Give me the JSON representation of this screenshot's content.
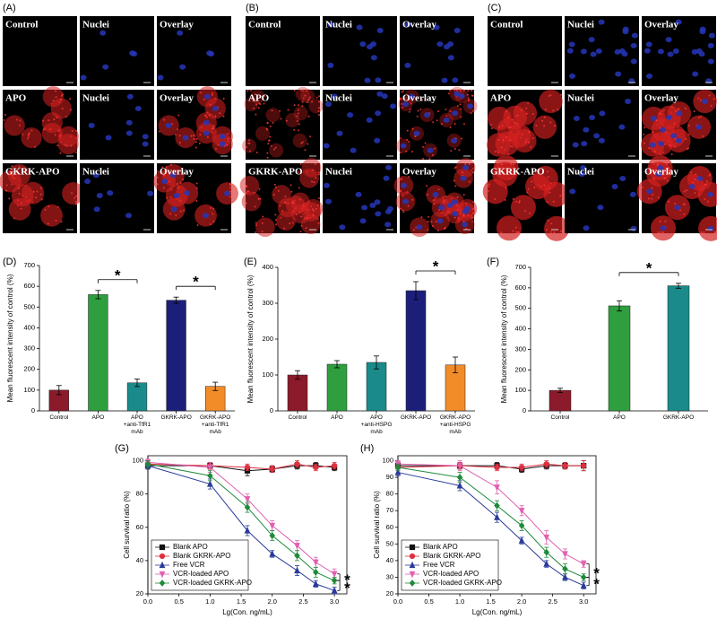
{
  "image_panels": [
    {
      "label": "(A)",
      "rows": [
        [
          "Control",
          "Nuclei",
          "Overlay"
        ],
        [
          "APO",
          "Nuclei",
          "Overlay"
        ],
        [
          "GKRK-APO",
          "Nuclei",
          "Overlay"
        ]
      ]
    },
    {
      "label": "(B)",
      "rows": [
        [
          "Control",
          "Nuclei",
          "Overlay"
        ],
        [
          "APO",
          "Nuclei",
          "Overlay"
        ],
        [
          "GKRK-APO",
          "Nuclei",
          "Overlay"
        ]
      ]
    },
    {
      "label": "(C)",
      "rows": [
        [
          "Control",
          "Nuclei",
          "Overlay"
        ],
        [
          "APO",
          "Nuclei",
          "Overlay"
        ],
        [
          "GKRK-APO",
          "Nuclei",
          "Overlay"
        ]
      ]
    }
  ],
  "chart_data": [
    {
      "type": "bar",
      "panel_label": "(D)",
      "y_label": "Mean fluorescent intensity of control (%)",
      "categories": [
        "Control",
        "APO",
        "APO\n+anti-TfR1 mAb",
        "GKRK-APO",
        "GKRK-APO\n+anti-TfR1 mAb"
      ],
      "values": [
        100,
        560,
        135,
        533,
        118
      ],
      "errors": [
        22,
        20,
        18,
        15,
        20
      ],
      "colors": [
        "#8b1a2b",
        "#2e9e3e",
        "#1a8a8a",
        "#1c1f7a",
        "#f28c28"
      ],
      "ylim": [
        0,
        700
      ],
      "yticks": [
        0,
        100,
        200,
        300,
        400,
        500,
        600,
        700
      ],
      "significance": [
        {
          "from": 1,
          "to": 2,
          "label": "*"
        },
        {
          "from": 3,
          "to": 4,
          "label": "*"
        }
      ]
    },
    {
      "type": "bar",
      "panel_label": "(E)",
      "y_label": "Mean fluorescent intensity of control (%)",
      "categories": [
        "Control",
        "APO",
        "APO\n+anti-HSPG mAb",
        "GKRK-APO",
        "GKRK-APO\n+anti-HSPG mAb"
      ],
      "values": [
        100,
        130,
        135,
        335,
        128
      ],
      "errors": [
        12,
        10,
        18,
        25,
        22
      ],
      "colors": [
        "#8b1a2b",
        "#2e9e3e",
        "#1a8a8a",
        "#1c1f7a",
        "#f28c28"
      ],
      "ylim": [
        0,
        400
      ],
      "yticks": [
        0,
        100,
        200,
        300,
        400
      ],
      "significance": [
        {
          "from": 3,
          "to": 4,
          "label": "*"
        }
      ]
    },
    {
      "type": "bar",
      "panel_label": "(F)",
      "y_label": "Mean fluorescent intensity of control (%)",
      "categories": [
        "Control",
        "APO",
        "GKRK-APO"
      ],
      "values": [
        100,
        512,
        610
      ],
      "errors": [
        10,
        25,
        12
      ],
      "colors": [
        "#8b1a2b",
        "#2e9e3e",
        "#1a8a8a"
      ],
      "ylim": [
        0,
        700
      ],
      "yticks": [
        0,
        100,
        200,
        300,
        400,
        500,
        600,
        700
      ],
      "significance": [
        {
          "from": 1,
          "to": 2,
          "label": "*"
        }
      ]
    },
    {
      "type": "line",
      "panel_label": "(G)",
      "x_label": "Lg(Con. ng/mL)",
      "y_label": "Cell survival ratio (%)",
      "x": [
        0,
        1.0,
        1.6,
        2.0,
        2.4,
        2.7,
        3.0
      ],
      "series": [
        {
          "name": "Blank APO",
          "color": "#111111",
          "marker": "square",
          "values": [
            97,
            97,
            94,
            95,
            97,
            97,
            96
          ],
          "errors": [
            2,
            2,
            3,
            2,
            2,
            2,
            2
          ]
        },
        {
          "name": "Blank GKRK-APO",
          "color": "#e03040",
          "marker": "circle",
          "values": [
            98,
            97,
            96,
            95,
            98,
            96,
            97
          ],
          "errors": [
            2,
            2,
            2,
            2,
            2,
            2,
            2
          ]
        },
        {
          "name": "Free VCR",
          "color": "#2a3a9a",
          "marker": "triangle-up",
          "values": [
            97,
            86,
            58,
            44,
            34,
            26,
            22
          ],
          "errors": [
            2,
            3,
            3,
            2,
            3,
            2,
            2
          ]
        },
        {
          "name": "VCR-loaded APO",
          "color": "#e060b0",
          "marker": "triangle-down",
          "values": [
            99,
            96,
            77,
            61,
            49,
            39,
            32
          ],
          "errors": [
            2,
            3,
            3,
            3,
            3,
            3,
            3
          ]
        },
        {
          "name": "VCR-loaded GKRK-APO",
          "color": "#1e8a3a",
          "marker": "diamond",
          "values": [
            98,
            91,
            72,
            55,
            43,
            33,
            28
          ],
          "errors": [
            2,
            3,
            3,
            3,
            3,
            3,
            2
          ]
        }
      ],
      "xlim": [
        0,
        3.2
      ],
      "xticks": [
        {
          "value": 0,
          "label": "0.0"
        },
        {
          "value": 0.5,
          "label": "0.5"
        },
        {
          "value": 1,
          "label": "1.0"
        },
        {
          "value": 1.5,
          "label": "1.5"
        },
        {
          "value": 2,
          "label": "2.0"
        },
        {
          "value": 2.5,
          "label": "2.5"
        },
        {
          "value": 3,
          "label": "3.0"
        }
      ],
      "ylim": [
        20,
        103
      ],
      "yticks": [
        20,
        40,
        60,
        80,
        100
      ],
      "legend": "lower left",
      "significance": [
        {
          "between": [
            3,
            4
          ],
          "label": "*"
        },
        {
          "between": [
            4,
            2
          ],
          "label": "*"
        }
      ]
    },
    {
      "type": "line",
      "panel_label": "(H)",
      "x_label": "Lg(Con. ng/mL)",
      "y_label": "Cell survival ratio (%)",
      "x": [
        0,
        1.0,
        1.6,
        2.0,
        2.4,
        2.7,
        3.0
      ],
      "series": [
        {
          "name": "Blank APO",
          "color": "#111111",
          "marker": "square",
          "values": [
            97,
            97,
            97,
            95,
            97,
            97,
            97
          ],
          "errors": [
            2,
            2,
            2,
            2,
            2,
            2,
            3
          ]
        },
        {
          "name": "Blank GKRK-APO",
          "color": "#e03040",
          "marker": "circle",
          "values": [
            96,
            97,
            96,
            96,
            98,
            97,
            97
          ],
          "errors": [
            2,
            2,
            2,
            2,
            2,
            2,
            3
          ]
        },
        {
          "name": "Free VCR",
          "color": "#2a3a9a",
          "marker": "triangle-up",
          "values": [
            93,
            85,
            66,
            52,
            38,
            30,
            25
          ],
          "errors": [
            2,
            3,
            3,
            2,
            2,
            2,
            2
          ]
        },
        {
          "name": "VCR-loaded APO",
          "color": "#e060b0",
          "marker": "triangle-down",
          "values": [
            98,
            97,
            84,
            70,
            54,
            44,
            38
          ],
          "errors": [
            2,
            3,
            4,
            3,
            4,
            3,
            2
          ]
        },
        {
          "name": "VCR-loaded GKRK-APO",
          "color": "#1e8a3a",
          "marker": "diamond",
          "values": [
            96,
            90,
            73,
            61,
            45,
            35,
            30
          ],
          "errors": [
            2,
            3,
            3,
            3,
            3,
            3,
            2
          ]
        }
      ],
      "xlim": [
        0,
        3.2
      ],
      "xticks": [
        {
          "value": 0,
          "label": "0.0"
        },
        {
          "value": 0.5,
          "label": "0.5"
        },
        {
          "value": 1,
          "label": "1.0"
        },
        {
          "value": 1.5,
          "label": "1.5"
        },
        {
          "value": 2,
          "label": "2.0"
        },
        {
          "value": 2.5,
          "label": "2.5"
        },
        {
          "value": 3,
          "label": "3.0"
        }
      ],
      "ylim": [
        20,
        103
      ],
      "yticks": [
        20,
        30,
        40,
        50,
        60,
        70,
        80,
        90,
        100
      ],
      "legend": "lower left",
      "significance": [
        {
          "between": [
            3,
            4
          ],
          "label": "*"
        },
        {
          "between": [
            4,
            2
          ],
          "label": "*"
        }
      ]
    }
  ]
}
